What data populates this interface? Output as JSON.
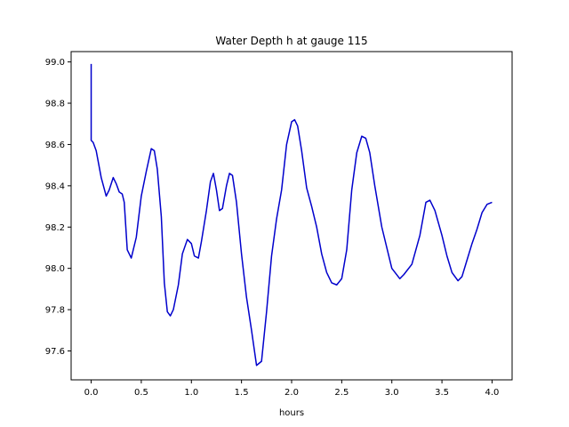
{
  "chart_data": {
    "type": "line",
    "title": "Water Depth h at gauge 115",
    "xlabel": "hours",
    "ylabel": "",
    "xlim": [
      -0.2,
      4.2
    ],
    "ylim": [
      97.46,
      99.05
    ],
    "xticks": [
      0.0,
      0.5,
      1.0,
      1.5,
      2.0,
      2.5,
      3.0,
      3.5,
      4.0
    ],
    "xtick_labels": [
      "0.0",
      "0.5",
      "1.0",
      "1.5",
      "2.0",
      "2.5",
      "3.0",
      "3.5",
      "4.0"
    ],
    "yticks": [
      97.6,
      97.8,
      98.0,
      98.2,
      98.4,
      98.6,
      98.8,
      99.0
    ],
    "ytick_labels": [
      "97.6",
      "97.8",
      "98.0",
      "98.2",
      "98.4",
      "98.6",
      "98.8",
      "99.0"
    ],
    "grid": false,
    "series": [
      {
        "color": "#0000cc",
        "x": [
          0.0,
          0.0,
          0.02,
          0.05,
          0.1,
          0.15,
          0.18,
          0.22,
          0.25,
          0.28,
          0.31,
          0.33,
          0.36,
          0.4,
          0.45,
          0.5,
          0.55,
          0.6,
          0.63,
          0.66,
          0.7,
          0.73,
          0.76,
          0.79,
          0.82,
          0.87,
          0.91,
          0.96,
          1.0,
          1.03,
          1.07,
          1.1,
          1.15,
          1.19,
          1.22,
          1.25,
          1.28,
          1.31,
          1.35,
          1.38,
          1.41,
          1.45,
          1.5,
          1.55,
          1.6,
          1.65,
          1.7,
          1.75,
          1.8,
          1.85,
          1.9,
          1.95,
          2.0,
          2.03,
          2.06,
          2.1,
          2.15,
          2.2,
          2.25,
          2.3,
          2.35,
          2.4,
          2.45,
          2.5,
          2.55,
          2.6,
          2.65,
          2.7,
          2.74,
          2.78,
          2.83,
          2.9,
          3.0,
          3.08,
          3.12,
          3.2,
          3.28,
          3.34,
          3.38,
          3.43,
          3.5,
          3.55,
          3.6,
          3.66,
          3.7,
          3.75,
          3.8,
          3.85,
          3.9,
          3.95,
          4.0
        ],
        "y": [
          98.99,
          98.62,
          98.61,
          98.57,
          98.44,
          98.35,
          98.38,
          98.44,
          98.41,
          98.37,
          98.36,
          98.32,
          98.09,
          98.05,
          98.15,
          98.35,
          98.47,
          98.58,
          98.57,
          98.48,
          98.25,
          97.93,
          97.79,
          97.77,
          97.8,
          97.92,
          98.07,
          98.14,
          98.12,
          98.06,
          98.05,
          98.13,
          98.28,
          98.42,
          98.46,
          98.38,
          98.28,
          98.29,
          98.4,
          98.46,
          98.45,
          98.32,
          98.07,
          97.86,
          97.7,
          97.53,
          97.55,
          97.79,
          98.06,
          98.24,
          98.38,
          98.6,
          98.71,
          98.72,
          98.69,
          98.57,
          98.39,
          98.3,
          98.2,
          98.07,
          97.98,
          97.93,
          97.92,
          97.95,
          98.09,
          98.38,
          98.56,
          98.64,
          98.63,
          98.56,
          98.4,
          98.2,
          98.0,
          97.95,
          97.97,
          98.02,
          98.16,
          98.32,
          98.33,
          98.28,
          98.16,
          98.06,
          97.98,
          97.94,
          97.96,
          98.04,
          98.12,
          98.19,
          98.27,
          98.31,
          98.32
        ]
      }
    ]
  }
}
